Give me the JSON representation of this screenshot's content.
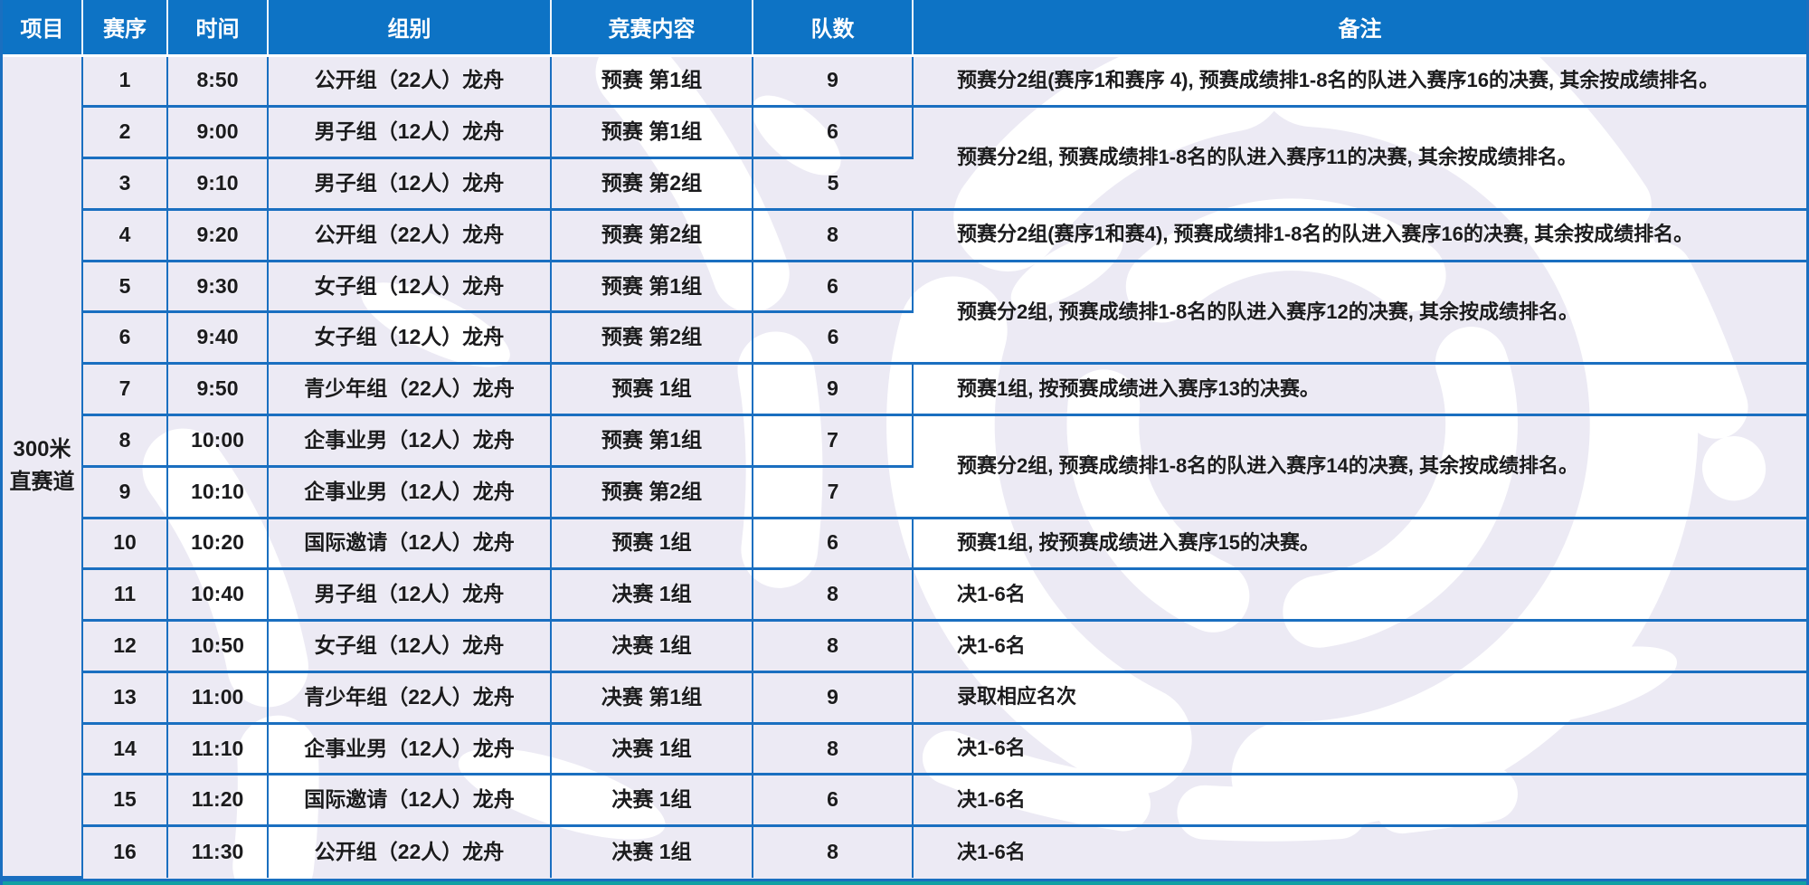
{
  "colors": {
    "header_bg": "#0d73c5",
    "grid_border": "#1a6fc0",
    "page_bg": "#eceaf4",
    "watermark": "#ffffff",
    "bottom_accent": "#12a0a2",
    "header_text": "#ffffff",
    "body_text": "#1b1b1d"
  },
  "table": {
    "headers": [
      "项目",
      "赛序",
      "时间",
      "组别",
      "竞赛内容",
      "队数",
      "备注"
    ],
    "project": {
      "line1": "300米",
      "line2": "直赛道"
    },
    "rows": [
      {
        "no": "1",
        "time": "8:50",
        "group": "公开组（22人）龙舟",
        "content": "预赛 第1组",
        "teams": "9",
        "remark": "预赛分2组(赛序1和赛序 4), 预赛成绩排1-8名的队进入赛序16的决赛, 其余按成绩排名。",
        "remark_span": 1
      },
      {
        "no": "2",
        "time": "9:00",
        "group": "男子组（12人）龙舟",
        "content": "预赛 第1组",
        "teams": "6",
        "remark": "预赛分2组, 预赛成绩排1-8名的队进入赛序11的决赛, 其余按成绩排名。",
        "remark_span": 2
      },
      {
        "no": "3",
        "time": "9:10",
        "group": "男子组（12人）龙舟",
        "content": "预赛 第2组",
        "teams": "5",
        "remark": "",
        "remark_span": 0
      },
      {
        "no": "4",
        "time": "9:20",
        "group": "公开组（22人）龙舟",
        "content": "预赛 第2组",
        "teams": "8",
        "remark": "预赛分2组(赛序1和赛4), 预赛成绩排1-8名的队进入赛序16的决赛, 其余按成绩排名。",
        "remark_span": 1
      },
      {
        "no": "5",
        "time": "9:30",
        "group": "女子组（12人）龙舟",
        "content": "预赛 第1组",
        "teams": "6",
        "remark": "预赛分2组, 预赛成绩排1-8名的队进入赛序12的决赛, 其余按成绩排名。",
        "remark_span": 2
      },
      {
        "no": "6",
        "time": "9:40",
        "group": "女子组（12人）龙舟",
        "content": "预赛 第2组",
        "teams": "6",
        "remark": "",
        "remark_span": 0
      },
      {
        "no": "7",
        "time": "9:50",
        "group": "青少年组（22人）龙舟",
        "content": "预赛 1组",
        "teams": "9",
        "remark": "预赛1组, 按预赛成绩进入赛序13的决赛。",
        "remark_span": 1
      },
      {
        "no": "8",
        "time": "10:00",
        "group": "企事业男（12人）龙舟",
        "content": "预赛 第1组",
        "teams": "7",
        "remark": "预赛分2组, 预赛成绩排1-8名的队进入赛序14的决赛, 其余按成绩排名。",
        "remark_span": 2
      },
      {
        "no": "9",
        "time": "10:10",
        "group": "企事业男（12人）龙舟",
        "content": "预赛 第2组",
        "teams": "7",
        "remark": "",
        "remark_span": 0
      },
      {
        "no": "10",
        "time": "10:20",
        "group": "国际邀请（12人）龙舟",
        "content": "预赛 1组",
        "teams": "6",
        "remark": "预赛1组, 按预赛成绩进入赛序15的决赛。",
        "remark_span": 1
      },
      {
        "no": "11",
        "time": "10:40",
        "group": "男子组（12人）龙舟",
        "content": "决赛 1组",
        "teams": "8",
        "remark": "决1-6名",
        "remark_span": 1
      },
      {
        "no": "12",
        "time": "10:50",
        "group": "女子组（12人）龙舟",
        "content": "决赛 1组",
        "teams": "8",
        "remark": "决1-6名",
        "remark_span": 1
      },
      {
        "no": "13",
        "time": "11:00",
        "group": "青少年组（22人）龙舟",
        "content": "决赛 第1组",
        "teams": "9",
        "remark": "录取相应名次",
        "remark_span": 1
      },
      {
        "no": "14",
        "time": "11:10",
        "group": "企事业男（12人）龙舟",
        "content": "决赛 1组",
        "teams": "8",
        "remark": "决1-6名",
        "remark_span": 1
      },
      {
        "no": "15",
        "time": "11:20",
        "group": "国际邀请（12人）龙舟",
        "content": "决赛 1组",
        "teams": "6",
        "remark": "决1-6名",
        "remark_span": 1
      },
      {
        "no": "16",
        "time": "11:30",
        "group": "公开组（22人）龙舟",
        "content": "决赛 1组",
        "teams": "8",
        "remark": "决1-6名",
        "remark_span": 1
      }
    ]
  }
}
